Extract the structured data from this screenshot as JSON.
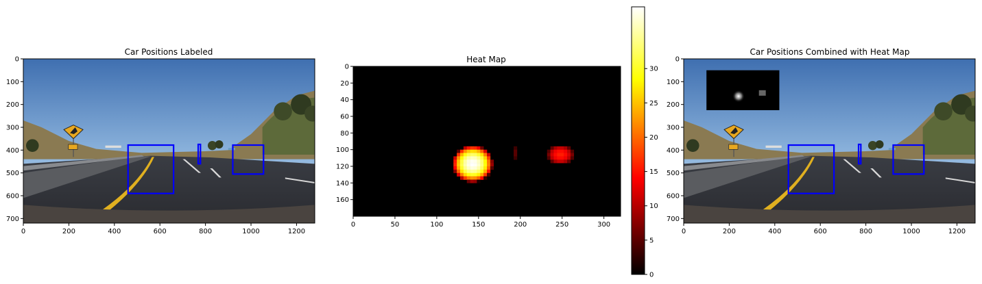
{
  "chart_data": [
    {
      "type": "image",
      "title": "Car Positions Labeled",
      "xlim": [
        0,
        1280
      ],
      "ylim": [
        720,
        0
      ],
      "xticks": [
        0,
        200,
        400,
        600,
        800,
        1000,
        1200
      ],
      "yticks": [
        0,
        100,
        200,
        300,
        400,
        500,
        600,
        700
      ],
      "boxes": [
        {
          "x0": 460,
          "y0": 378,
          "x1": 660,
          "y1": 590,
          "color": "#0000ff"
        },
        {
          "x0": 920,
          "y0": 378,
          "x1": 1055,
          "y1": 505,
          "color": "#0000ff"
        },
        {
          "x0": 768,
          "y0": 375,
          "x1": 778,
          "y1": 460,
          "color": "#0000ff"
        }
      ]
    },
    {
      "type": "heatmap",
      "title": "Heat Map",
      "xlim": [
        0,
        320
      ],
      "ylim": [
        180,
        0
      ],
      "xticks": [
        0,
        50,
        100,
        150,
        200,
        250,
        300
      ],
      "yticks": [
        0,
        20,
        40,
        60,
        80,
        100,
        120,
        140,
        160
      ],
      "hotspots": [
        {
          "cx": 143,
          "cy": 117,
          "peak": 39,
          "rx": 24,
          "ry": 22
        },
        {
          "cx": 248,
          "cy": 106,
          "peak": 16,
          "rx": 16,
          "ry": 12
        },
        {
          "cx": 193,
          "cy": 104,
          "peak": 6,
          "rx": 2,
          "ry": 10
        }
      ],
      "colorbar": {
        "min": 0,
        "max": 39,
        "ticks": [
          0,
          5,
          10,
          15,
          20,
          25,
          30
        ],
        "colormap": "hot"
      }
    },
    {
      "type": "image",
      "title": "Car Positions Combined with Heat Map",
      "xlim": [
        0,
        1280
      ],
      "ylim": [
        720,
        0
      ],
      "xticks": [
        0,
        200,
        400,
        600,
        800,
        1000,
        1200
      ],
      "yticks": [
        0,
        100,
        200,
        300,
        400,
        500,
        600,
        700
      ],
      "boxes": [
        {
          "x0": 460,
          "y0": 378,
          "x1": 660,
          "y1": 590,
          "color": "#0000ff"
        },
        {
          "x0": 920,
          "y0": 378,
          "x1": 1055,
          "y1": 505,
          "color": "#0000ff"
        },
        {
          "x0": 768,
          "y0": 375,
          "x1": 778,
          "y1": 460,
          "color": "#0000ff"
        }
      ],
      "inset": {
        "x0": 100,
        "y0": 50,
        "x1": 420,
        "y1": 225
      }
    }
  ]
}
